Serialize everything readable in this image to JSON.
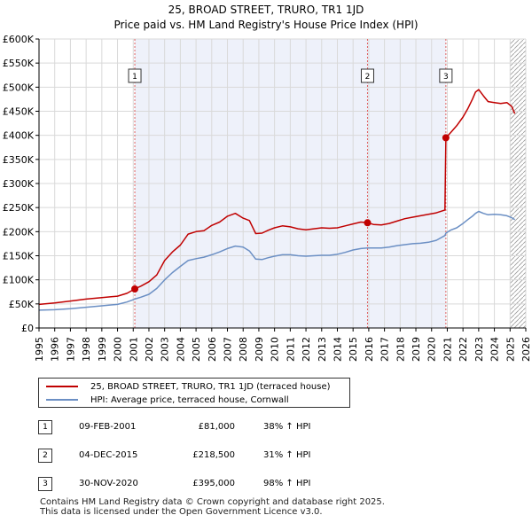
{
  "chart_data": {
    "type": "line",
    "title": "25, BROAD STREET, TRURO, TR1 1JD",
    "subtitle": "Price paid vs. HM Land Registry's House Price Index (HPI)",
    "xlabel": "",
    "ylabel": "",
    "xlim": [
      1995,
      2026
    ],
    "ylim": [
      0,
      600000
    ],
    "grid": true,
    "x_ticks": [
      "1995",
      "1996",
      "1997",
      "1998",
      "1999",
      "2000",
      "2001",
      "2002",
      "2003",
      "2004",
      "2005",
      "2006",
      "2007",
      "2008",
      "2009",
      "2010",
      "2011",
      "2012",
      "2013",
      "2014",
      "2015",
      "2016",
      "2017",
      "2018",
      "2019",
      "2020",
      "2021",
      "2022",
      "2023",
      "2024",
      "2025",
      "2026"
    ],
    "y_ticks": [
      {
        "value": 0,
        "label": "£0"
      },
      {
        "value": 50000,
        "label": "£50K"
      },
      {
        "value": 100000,
        "label": "£100K"
      },
      {
        "value": 150000,
        "label": "£150K"
      },
      {
        "value": 200000,
        "label": "£200K"
      },
      {
        "value": 250000,
        "label": "£250K"
      },
      {
        "value": 300000,
        "label": "£300K"
      },
      {
        "value": 350000,
        "label": "£350K"
      },
      {
        "value": 400000,
        "label": "£400K"
      },
      {
        "value": 450000,
        "label": "£450K"
      },
      {
        "value": 500000,
        "label": "£500K"
      },
      {
        "value": 550000,
        "label": "£550K"
      },
      {
        "value": 600000,
        "label": "£600K"
      }
    ],
    "series": [
      {
        "name": "25, BROAD STREET, TRURO, TR1 1JD (terraced house)",
        "color": "#c00000",
        "x": [
          1995.0,
          1996.0,
          1997.0,
          1998.0,
          1999.0,
          2000.0,
          2000.6,
          2001.1,
          2001.5,
          2002.0,
          2002.5,
          2003.0,
          2003.5,
          2004.0,
          2004.5,
          2005.0,
          2005.5,
          2006.0,
          2006.5,
          2007.0,
          2007.5,
          2008.0,
          2008.4,
          2008.8,
          2009.2,
          2009.6,
          2010.0,
          2010.5,
          2011.0,
          2011.5,
          2012.0,
          2012.5,
          2013.0,
          2013.5,
          2014.0,
          2014.5,
          2015.0,
          2015.5,
          2015.92,
          2016.3,
          2016.8,
          2017.3,
          2017.8,
          2018.3,
          2018.8,
          2019.3,
          2019.8,
          2020.3,
          2020.85,
          2020.91,
          2021.2,
          2021.6,
          2022.0,
          2022.3,
          2022.6,
          2022.8,
          2023.0,
          2023.3,
          2023.6,
          2024.0,
          2024.4,
          2024.8,
          2025.1,
          2025.3
        ],
        "values": [
          49000,
          52000,
          56000,
          60000,
          63000,
          66000,
          72000,
          81000,
          87000,
          96000,
          110000,
          140000,
          158000,
          172000,
          195000,
          200000,
          202000,
          213000,
          220000,
          232000,
          238000,
          228000,
          223000,
          196000,
          197000,
          203000,
          208000,
          212000,
          210000,
          206000,
          204000,
          206000,
          208000,
          207000,
          208000,
          212000,
          216000,
          220000,
          218500,
          215000,
          214000,
          217000,
          222000,
          227000,
          230000,
          233000,
          236000,
          239000,
          245000,
          395000,
          405000,
          420000,
          438000,
          455000,
          475000,
          490000,
          495000,
          482000,
          470000,
          468000,
          466000,
          468000,
          460000,
          445000
        ]
      },
      {
        "name": "HPI: Average price, terraced house, Cornwall",
        "color": "#6b8fc4",
        "x": [
          1995.0,
          1996.0,
          1997.0,
          1998.0,
          1999.0,
          2000.0,
          2000.6,
          2001.1,
          2001.5,
          2002.0,
          2002.5,
          2003.0,
          2003.5,
          2004.0,
          2004.5,
          2005.0,
          2005.5,
          2006.0,
          2006.5,
          2007.0,
          2007.5,
          2008.0,
          2008.4,
          2008.8,
          2009.2,
          2009.6,
          2010.0,
          2010.5,
          2011.0,
          2011.5,
          2012.0,
          2012.5,
          2013.0,
          2013.5,
          2014.0,
          2014.5,
          2015.0,
          2015.5,
          2015.92,
          2016.3,
          2016.8,
          2017.3,
          2017.8,
          2018.3,
          2018.8,
          2019.3,
          2019.8,
          2020.3,
          2020.85,
          2020.91,
          2021.2,
          2021.6,
          2022.0,
          2022.3,
          2022.6,
          2022.8,
          2023.0,
          2023.3,
          2023.6,
          2024.0,
          2024.4,
          2024.8,
          2025.1,
          2025.3
        ],
        "values": [
          37000,
          38000,
          40000,
          43000,
          46000,
          49000,
          54000,
          60000,
          64000,
          70000,
          82000,
          100000,
          115000,
          128000,
          140000,
          144000,
          147000,
          152000,
          158000,
          165000,
          170000,
          168000,
          160000,
          143000,
          142000,
          146000,
          149000,
          152000,
          152000,
          150000,
          149000,
          150000,
          151000,
          151000,
          153000,
          157000,
          162000,
          165000,
          166000,
          166000,
          166000,
          168000,
          171000,
          173000,
          175000,
          176000,
          178000,
          182000,
          192000,
          197000,
          203000,
          208000,
          217000,
          225000,
          232000,
          238000,
          242000,
          238000,
          235000,
          236000,
          235000,
          233000,
          229000,
          225000
        ]
      }
    ],
    "vlines": [
      {
        "x": 2001.1,
        "label": "1"
      },
      {
        "x": 2015.92,
        "label": "2"
      },
      {
        "x": 2020.91,
        "label": "3"
      }
    ],
    "sales": [
      {
        "x": 2001.1,
        "price": 81000
      },
      {
        "x": 2015.92,
        "price": 218500
      },
      {
        "x": 2020.91,
        "price": 395000
      }
    ],
    "shade_ranges": [
      [
        2001.1,
        2020.91
      ]
    ],
    "hatch_from": 2025.0
  },
  "legend": {
    "entries": [
      {
        "label": "25, BROAD STREET, TRURO, TR1 1JD (terraced house)",
        "color": "#c00000"
      },
      {
        "label": "HPI: Average price, terraced house, Cornwall",
        "color": "#6b8fc4"
      }
    ]
  },
  "transactions": [
    {
      "num": "1",
      "date": "09-FEB-2001",
      "price": "£81,000",
      "hpi": "38% ↑ HPI"
    },
    {
      "num": "2",
      "date": "04-DEC-2015",
      "price": "£218,500",
      "hpi": "31% ↑ HPI"
    },
    {
      "num": "3",
      "date": "30-NOV-2020",
      "price": "£395,000",
      "hpi": "98% ↑ HPI"
    }
  ],
  "footer": {
    "line1": "Contains HM Land Registry data © Crown copyright and database right 2025.",
    "line2": "This data is licensed under the Open Government Licence v3.0."
  }
}
